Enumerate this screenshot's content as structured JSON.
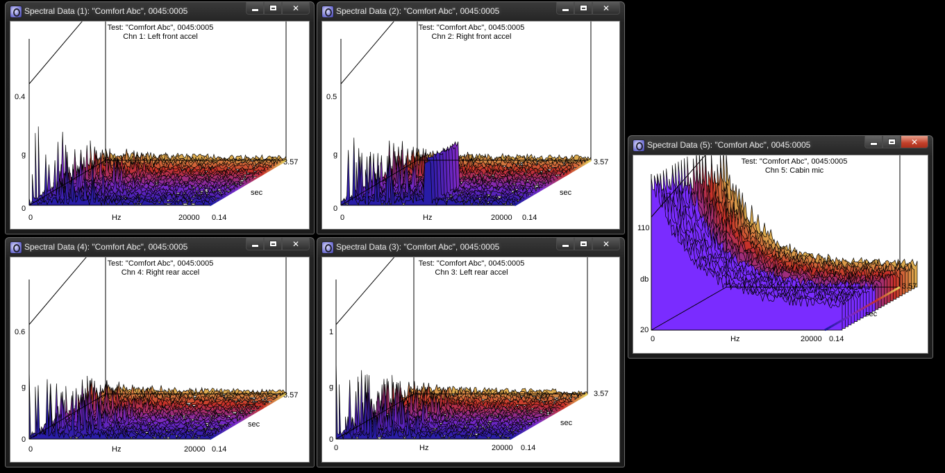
{
  "windows": [
    {
      "title": "Spectral Data (1): \"Comfort Abc\", 0045:0005",
      "plot": {
        "test": "Test: \"Comfort Abc\", 0045:0005",
        "channel": "Chn 1: Left front accel",
        "y_max": "0.4",
        "y_unit": "g",
        "y_min": "0",
        "x_min": "0",
        "x_unit": "Hz",
        "x_max": "20000",
        "z_min": "0.14",
        "z_max": "3.57",
        "z_unit": "sec"
      },
      "controls": {
        "minimize": "minimize",
        "maximize": "maximize",
        "close": "close"
      }
    },
    {
      "title": "Spectral Data (2): \"Comfort Abc\", 0045:0005",
      "plot": {
        "test": "Test: \"Comfort Abc\", 0045:0005",
        "channel": "Chn 2: Right front accel",
        "y_max": "0.5",
        "y_unit": "g",
        "y_min": "0",
        "x_min": "0",
        "x_unit": "Hz",
        "x_max": "20000",
        "z_min": "0.14",
        "z_max": "3.57",
        "z_unit": "sec"
      }
    },
    {
      "title": "Spectral Data (4): \"Comfort Abc\", 0045:0005",
      "plot": {
        "test": "Test: \"Comfort Abc\", 0045:0005",
        "channel": "Chn 4: Right rear accel",
        "y_max": "0.6",
        "y_unit": "g",
        "y_min": "0",
        "x_min": "0",
        "x_unit": "Hz",
        "x_max": "20000",
        "z_min": "0.14",
        "z_max": "3.57",
        "z_unit": "sec"
      }
    },
    {
      "title": "Spectral Data (3): \"Comfort Abc\", 0045:0005",
      "plot": {
        "test": "Test: \"Comfort Abc\", 0045:0005",
        "channel": "Chn 3: Left rear accel",
        "y_max": "1",
        "y_unit": "g",
        "y_min": "0",
        "x_min": "0",
        "x_unit": "Hz",
        "x_max": "20000",
        "z_min": "0.14",
        "z_max": "3.57",
        "z_unit": "sec"
      }
    },
    {
      "title": "Spectral Data (5): \"Comfort Abc\", 0045:0005",
      "plot": {
        "test": "Test: \"Comfort Abc\", 0045:0005",
        "channel": "Chn 5: Cabin mic",
        "y_max": "110",
        "y_unit": "db",
        "y_min": "20",
        "x_min": "0",
        "x_unit": "Hz",
        "x_max": "20000",
        "z_min": "0.14",
        "z_max": "3.57",
        "z_unit": "sec"
      }
    }
  ],
  "colors": {
    "desktop": "#000000",
    "waterfall_low": "#1a1aa0",
    "waterfall_mid": "#c0302a",
    "waterfall_high": "#e8e060",
    "mic_band": "#7a2cff"
  }
}
